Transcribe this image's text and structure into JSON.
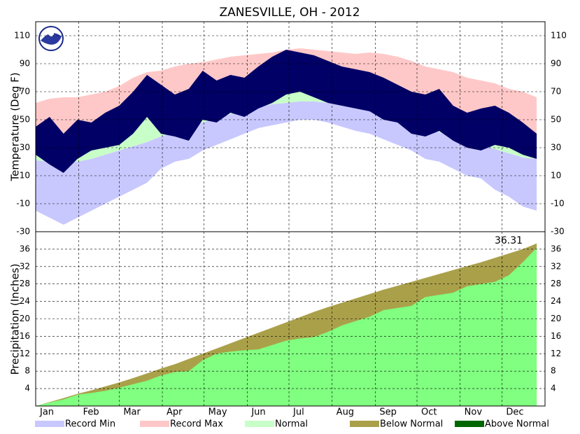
{
  "chart_data": [
    {
      "type": "band",
      "title": "ZANESVILLE, OH - 2012",
      "ylabel": "Temperature (Deg F)",
      "x": [
        1,
        11,
        21,
        31,
        41,
        51,
        61,
        71,
        81,
        91,
        101,
        111,
        121,
        131,
        141,
        151,
        161,
        171,
        181,
        191,
        201,
        211,
        221,
        231,
        241,
        251,
        261,
        271,
        281,
        291,
        301,
        311,
        321,
        331,
        341,
        351,
        361
      ],
      "xlim": [
        1,
        367
      ],
      "ylim": [
        -30,
        120
      ],
      "yticks": [
        -30,
        -10,
        10,
        30,
        50,
        70,
        90,
        110
      ],
      "grid": true,
      "series": [
        {
          "name": "Record Min",
          "color": "#c8c8ff",
          "values": [
            -15,
            -20,
            -25,
            -20,
            -15,
            -10,
            -5,
            0,
            5,
            15,
            20,
            22,
            28,
            32,
            36,
            40,
            44,
            46,
            48,
            50,
            50,
            48,
            45,
            42,
            40,
            36,
            32,
            28,
            22,
            20,
            15,
            10,
            8,
            0,
            -5,
            -12,
            -15
          ]
        },
        {
          "name": "Record Max",
          "color": "#ffc8c8",
          "values": [
            62,
            65,
            66,
            66,
            68,
            70,
            74,
            80,
            84,
            85,
            88,
            90,
            91,
            93,
            95,
            96,
            97,
            98,
            100,
            101,
            100,
            99,
            98,
            97,
            98,
            97,
            95,
            92,
            88,
            86,
            84,
            80,
            78,
            76,
            72,
            70,
            66
          ]
        },
        {
          "name": "Normal",
          "color": "#c8ffc8",
          "low": [
            21,
            20,
            19,
            20,
            22,
            25,
            28,
            31,
            34,
            38,
            41,
            44,
            48,
            51,
            54,
            57,
            59,
            61,
            62,
            63,
            63,
            62,
            61,
            60,
            57,
            54,
            51,
            47,
            44,
            41,
            38,
            35,
            32,
            29,
            26,
            23,
            22
          ],
          "high": [
            37,
            36,
            36,
            38,
            41,
            45,
            49,
            53,
            58,
            62,
            65,
            69,
            72,
            75,
            78,
            80,
            82,
            84,
            85,
            86,
            86,
            85,
            84,
            83,
            80,
            77,
            74,
            70,
            67,
            63,
            59,
            55,
            51,
            47,
            43,
            40,
            38
          ]
        }
      ],
      "observed": {
        "color": "#000066",
        "low": [
          25,
          18,
          12,
          22,
          28,
          30,
          32,
          40,
          52,
          40,
          38,
          35,
          50,
          48,
          55,
          52,
          58,
          62,
          68,
          70,
          66,
          62,
          60,
          58,
          56,
          50,
          48,
          40,
          38,
          42,
          35,
          30,
          28,
          32,
          30,
          25,
          22
        ],
        "high": [
          45,
          52,
          40,
          50,
          48,
          55,
          60,
          70,
          82,
          75,
          68,
          72,
          85,
          78,
          82,
          80,
          88,
          95,
          100,
          98,
          96,
          92,
          88,
          86,
          84,
          80,
          75,
          70,
          68,
          72,
          60,
          55,
          58,
          60,
          55,
          48,
          40
        ]
      }
    },
    {
      "type": "area",
      "ylabel": "Precipitation (Inches)",
      "x": [
        1,
        11,
        21,
        31,
        41,
        51,
        61,
        71,
        81,
        91,
        101,
        111,
        121,
        131,
        141,
        151,
        161,
        171,
        181,
        191,
        201,
        211,
        221,
        231,
        241,
        251,
        261,
        271,
        281,
        291,
        301,
        311,
        321,
        331,
        341,
        351,
        361
      ],
      "xlim": [
        1,
        367
      ],
      "ylim": [
        0,
        40
      ],
      "yticks": [
        4,
        8,
        12,
        16,
        20,
        24,
        28,
        32,
        36
      ],
      "grid": true,
      "xticks": [
        {
          "value": 1,
          "label": "Jan"
        },
        {
          "value": 32,
          "label": "Feb"
        },
        {
          "value": 61,
          "label": "Mar"
        },
        {
          "value": 92,
          "label": "Apr"
        },
        {
          "value": 122,
          "label": "May"
        },
        {
          "value": 153,
          "label": "Jun"
        },
        {
          "value": 183,
          "label": "Jul"
        },
        {
          "value": 214,
          "label": "Aug"
        },
        {
          "value": 245,
          "label": "Sep"
        },
        {
          "value": 275,
          "label": "Oct"
        },
        {
          "value": 306,
          "label": "Nov"
        },
        {
          "value": 336,
          "label": "Dec"
        }
      ],
      "series": [
        {
          "name": "Below Normal",
          "color": "#aaa04a"
        },
        {
          "name": "Above Normal",
          "color": "#006600"
        }
      ],
      "normal": [
        0,
        0.9,
        1.8,
        2.8,
        3.6,
        4.5,
        5.4,
        6.4,
        7.5,
        8.6,
        9.6,
        10.8,
        12,
        13.2,
        14.4,
        15.6,
        16.8,
        18,
        19.2,
        20.4,
        21.6,
        22.7,
        23.7,
        24.7,
        25.7,
        26.7,
        27.6,
        28.5,
        29.4,
        30.3,
        31.2,
        32.1,
        33,
        34,
        35,
        36,
        37.3
      ],
      "observed": {
        "color": "#80ff80",
        "values": [
          0,
          0.8,
          1.5,
          2.6,
          3,
          3.5,
          4.2,
          5,
          5.8,
          7,
          7.8,
          8,
          10.5,
          12,
          12.5,
          12.8,
          13,
          14,
          15,
          15.5,
          15.8,
          17,
          18.5,
          19.5,
          20.5,
          22,
          22.5,
          23,
          25,
          25.5,
          26,
          27.5,
          28,
          28.5,
          30,
          33,
          36.31
        ]
      }
    }
  ]
}
